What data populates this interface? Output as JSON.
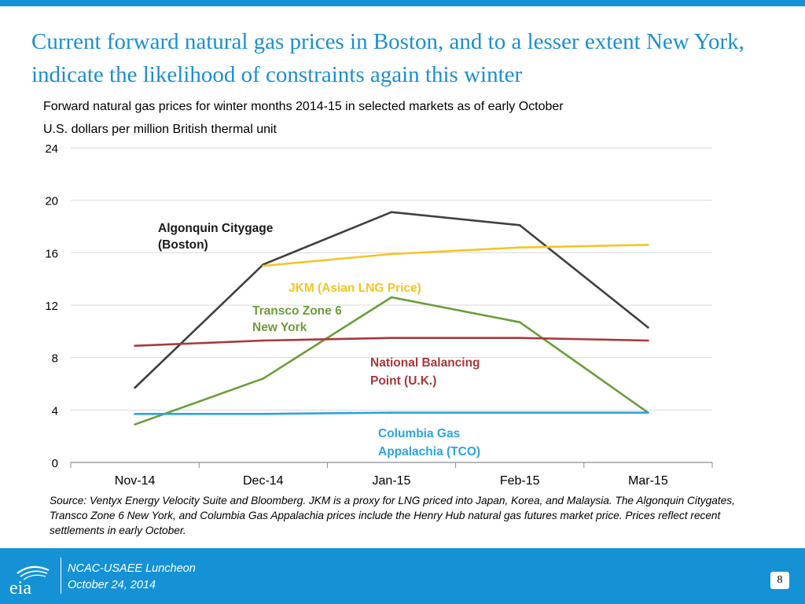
{
  "slide": {
    "title": "Current forward natural gas prices in Boston, and to a lesser extent New York, indicate the likelihood of constraints again this winter",
    "subtitle": "Forward natural gas prices for winter months 2014-15 in selected markets as of early October",
    "units": "U.S. dollars per million British thermal unit",
    "source": "Source:  Ventyx Energy Velocity Suite and Bloomberg.  JKM is a proxy for LNG priced into Japan, Korea, and Malaysia.  The Algonquin Citygates, Transco Zone 6 New York, and Columbia Gas Appalachia prices include the Henry Hub natural gas futures market price.  Prices reflect recent settlements in early October."
  },
  "footer": {
    "logo_text": "eia",
    "event": "NCAC-USAEE Luncheon",
    "date": "October 24, 2014",
    "page_number": "8"
  },
  "colors": {
    "title": "#1a8fd0",
    "footer": "#1592d6"
  },
  "chart_data": {
    "type": "line",
    "title": "",
    "xlabel": "",
    "ylabel": "",
    "categories": [
      "Nov-14",
      "Dec-14",
      "Jan-15",
      "Feb-15",
      "Mar-15"
    ],
    "ylim": [
      0,
      24
    ],
    "yticks": [
      0,
      4,
      8,
      12,
      16,
      20,
      24
    ],
    "grid": true,
    "legend": "inline labels",
    "series": [
      {
        "name": "Algonquin Citygage (Boston)",
        "label_lines": [
          "Algonquin Citygage",
          "(Boston)"
        ],
        "color": "#404040",
        "values": [
          5.7,
          15.1,
          19.1,
          18.1,
          10.3
        ]
      },
      {
        "name": "JKM (Asian LNG Price)",
        "label_lines": [
          "JKM (Asian LNG Price)"
        ],
        "color": "#f7c325",
        "values": [
          null,
          15.0,
          15.9,
          16.4,
          16.6
        ]
      },
      {
        "name": "Transco Zone 6 New York",
        "label_lines": [
          "Transco Zone 6",
          "New York"
        ],
        "color": "#6a9e3a",
        "values": [
          2.9,
          6.4,
          12.6,
          10.7,
          3.8
        ]
      },
      {
        "name": "National Balancing Point (U.K.)",
        "label_lines": [
          "National Balancing",
          "Point (U.K.)"
        ],
        "color": "#a8383b",
        "values": [
          8.9,
          9.3,
          9.5,
          9.5,
          9.3
        ]
      },
      {
        "name": "Columbia Gas Appalachia (TCO)",
        "label_lines": [
          "Columbia Gas",
          "Appalachia (TCO)"
        ],
        "color": "#2aa4de",
        "values": [
          3.7,
          3.7,
          3.8,
          3.8,
          3.8
        ]
      }
    ]
  }
}
